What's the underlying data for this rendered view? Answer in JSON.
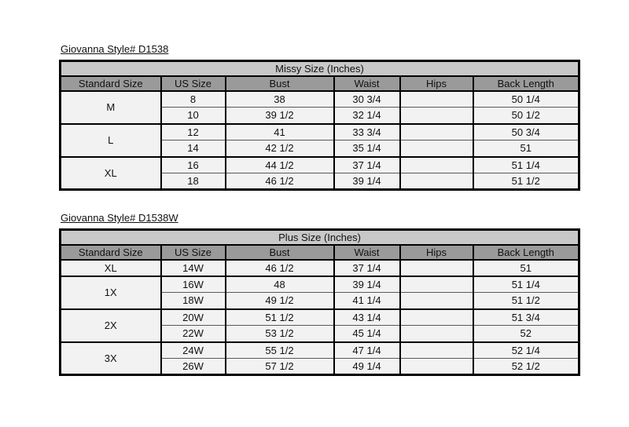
{
  "colors": {
    "page_background": "#ffffff",
    "band_background": "#c8c8c8",
    "header_background": "#9a9a9a",
    "cell_background": "#f2f2f2",
    "border": "#000000"
  },
  "tables": [
    {
      "title": "Giovanna Style# D1538",
      "band": "Missy Size (Inches)",
      "columns": [
        "Standard Size",
        "US Size",
        "Bust",
        "Waist",
        "Hips",
        "Back Length"
      ],
      "groups": [
        {
          "standard_size": "M",
          "rows": [
            {
              "us_size": "8",
              "bust": "38",
              "waist": "30 3/4",
              "hips": "",
              "back_length": "50 1/4"
            },
            {
              "us_size": "10",
              "bust": "39 1/2",
              "waist": "32 1/4",
              "hips": "",
              "back_length": "50 1/2"
            }
          ]
        },
        {
          "standard_size": "L",
          "rows": [
            {
              "us_size": "12",
              "bust": "41",
              "waist": "33 3/4",
              "hips": "",
              "back_length": "50 3/4"
            },
            {
              "us_size": "14",
              "bust": "42 1/2",
              "waist": "35 1/4",
              "hips": "",
              "back_length": "51"
            }
          ]
        },
        {
          "standard_size": "XL",
          "rows": [
            {
              "us_size": "16",
              "bust": "44 1/2",
              "waist": "37 1/4",
              "hips": "",
              "back_length": "51 1/4"
            },
            {
              "us_size": "18",
              "bust": "46 1/2",
              "waist": "39 1/4",
              "hips": "",
              "back_length": "51 1/2"
            }
          ]
        }
      ]
    },
    {
      "title": "Giovanna Style# D1538W",
      "band": "Plus Size (Inches)",
      "columns": [
        "Standard Size",
        "US Size",
        "Bust",
        "Waist",
        "Hips",
        "Back Length"
      ],
      "groups": [
        {
          "standard_size": "XL",
          "rows": [
            {
              "us_size": "14W",
              "bust": "46 1/2",
              "waist": "37 1/4",
              "hips": "",
              "back_length": "51"
            }
          ]
        },
        {
          "standard_size": "1X",
          "rows": [
            {
              "us_size": "16W",
              "bust": "48",
              "waist": "39 1/4",
              "hips": "",
              "back_length": "51 1/4"
            },
            {
              "us_size": "18W",
              "bust": "49 1/2",
              "waist": "41 1/4",
              "hips": "",
              "back_length": "51 1/2"
            }
          ]
        },
        {
          "standard_size": "2X",
          "rows": [
            {
              "us_size": "20W",
              "bust": "51 1/2",
              "waist": "43 1/4",
              "hips": "",
              "back_length": "51 3/4"
            },
            {
              "us_size": "22W",
              "bust": "53 1/2",
              "waist": "45 1/4",
              "hips": "",
              "back_length": "52"
            }
          ]
        },
        {
          "standard_size": "3X",
          "rows": [
            {
              "us_size": "24W",
              "bust": "55 1/2",
              "waist": "47 1/4",
              "hips": "",
              "back_length": "52 1/4"
            },
            {
              "us_size": "26W",
              "bust": "57 1/2",
              "waist": "49 1/4",
              "hips": "",
              "back_length": "52 1/2"
            }
          ]
        }
      ]
    }
  ]
}
